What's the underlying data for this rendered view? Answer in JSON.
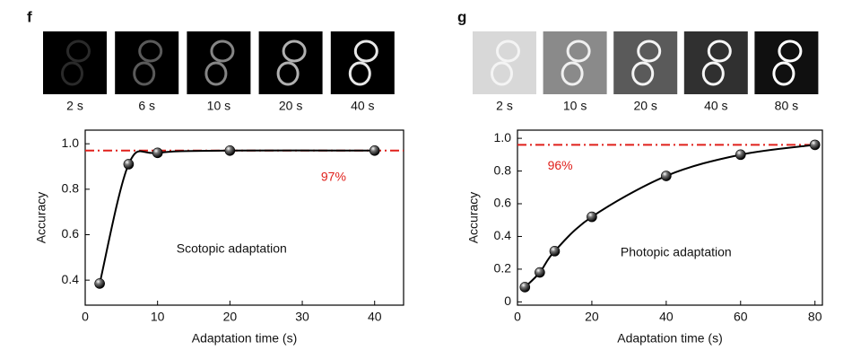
{
  "chart_data": [
    {
      "type": "scatter",
      "panel_label": "f",
      "thumbnails": [
        {
          "caption": "2 s",
          "background": "#000000",
          "digit": "#2a2a2a"
        },
        {
          "caption": "6 s",
          "background": "#000000",
          "digit": "#5a5a5a"
        },
        {
          "caption": "10 s",
          "background": "#000000",
          "digit": "#858585"
        },
        {
          "caption": "20 s",
          "background": "#000000",
          "digit": "#b0b0b0"
        },
        {
          "caption": "40 s",
          "background": "#000000",
          "digit": "#e8e8e8"
        }
      ],
      "x": [
        2,
        6,
        10,
        20,
        40
      ],
      "values": [
        0.385,
        0.91,
        0.96,
        0.97,
        0.97
      ],
      "xlim": [
        0,
        44
      ],
      "ylim": [
        0.29,
        1.06
      ],
      "xticks": [
        0,
        10,
        20,
        30,
        40
      ],
      "yticks": [
        0.4,
        0.6,
        0.8,
        {
          "value": 1,
          "label": "1.0"
        }
      ],
      "xlabel": "Adaptation time (s)",
      "ylabel": "Accuracy",
      "reference": {
        "value": 0.97,
        "label": "97%",
        "color": "#e0201b"
      },
      "annotation": "Scotopic adaptation",
      "color": "#000000"
    },
    {
      "type": "scatter",
      "panel_label": "g",
      "thumbnails": [
        {
          "caption": "2 s",
          "background": "#d8d8d8",
          "digit": "#f4f4f4"
        },
        {
          "caption": "10 s",
          "background": "#8a8a8a",
          "digit": "#f0f0f0"
        },
        {
          "caption": "20 s",
          "background": "#5a5a5a",
          "digit": "#f4f4f4"
        },
        {
          "caption": "40 s",
          "background": "#303030",
          "digit": "#f6f6f6"
        },
        {
          "caption": "80 s",
          "background": "#101010",
          "digit": "#ffffff"
        }
      ],
      "x": [
        2,
        6,
        10,
        20,
        40,
        60,
        80
      ],
      "values": [
        0.09,
        0.18,
        0.31,
        0.52,
        0.77,
        0.9,
        0.96
      ],
      "xlim": [
        0,
        82
      ],
      "ylim": [
        -0.02,
        1.05
      ],
      "xticks": [
        0,
        20,
        40,
        60,
        80
      ],
      "yticks": [
        0,
        0.2,
        0.4,
        0.6,
        0.8,
        {
          "value": 1,
          "label": "1.0"
        }
      ],
      "xlabel": "Adaptation time (s)",
      "ylabel": "Accuracy",
      "reference": {
        "value": 0.96,
        "label": "96%",
        "color": "#e0201b"
      },
      "annotation": "Photopic adaptation",
      "color": "#000000"
    }
  ]
}
